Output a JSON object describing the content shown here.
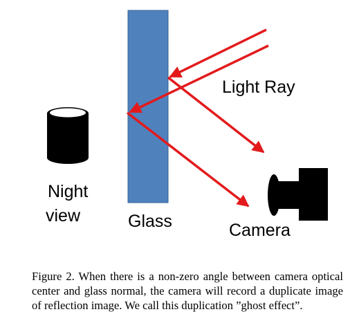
{
  "diagram": {
    "labels": {
      "night_view_line1": "Night",
      "night_view_line2": "view",
      "glass": "Glass",
      "light_ray": "Light Ray",
      "camera": "Camera"
    },
    "colors": {
      "glass_fill": "#4f81bd",
      "glass_stroke": "#3a6593",
      "ray": "#e31a1c",
      "object": "#000000"
    },
    "icons": {
      "night_view": "cylinder-icon",
      "camera": "camera-icon"
    }
  },
  "caption": {
    "text": "Figure 2. When there is a non-zero angle between camera optical center and glass normal, the camera will record a duplicate image of reflection image. We call this duplication ”ghost effect”."
  }
}
